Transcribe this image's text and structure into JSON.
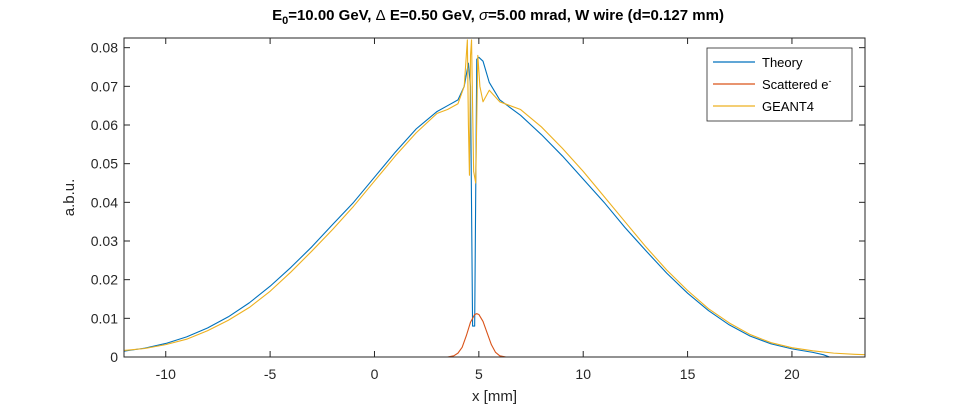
{
  "chart_data": {
    "type": "line",
    "title": {
      "p1": "E",
      "p1_sub": "0",
      "p2": "=10.00 GeV, ",
      "p3": "Δ",
      "p4": " E=0.50 GeV, ",
      "p5": "σ",
      "p6": "=5.00 mrad, W wire (d=0.127 mm)"
    },
    "xlabel": "x [mm]",
    "ylabel": "a.b.u.",
    "xlim": [
      -12,
      23.5
    ],
    "ylim": [
      0,
      0.0825
    ],
    "xticks": [
      -10,
      -5,
      0,
      5,
      10,
      15,
      20
    ],
    "yticks": [
      0,
      0.01,
      0.02,
      0.03,
      0.04,
      0.05,
      0.06,
      0.07,
      0.08
    ],
    "xtick_labels": [
      "-10",
      "-5",
      "0",
      "5",
      "10",
      "15",
      "20"
    ],
    "ytick_labels": [
      "0",
      "0.01",
      "0.02",
      "0.03",
      "0.04",
      "0.05",
      "0.06",
      "0.07",
      "0.08"
    ],
    "grid": false,
    "legend_position": "top-right",
    "series": [
      {
        "name": "Theory",
        "name_sup": "",
        "color": "#0072BD",
        "x": [
          -12,
          -11,
          -10,
          -9,
          -8,
          -7,
          -6,
          -5,
          -4,
          -3,
          -2,
          -1,
          0,
          1,
          2,
          3,
          3.5,
          4,
          4.3,
          4.5,
          4.6,
          4.7,
          4.8,
          4.9,
          5.0,
          5.2,
          5.5,
          6,
          7,
          8,
          9,
          10,
          11,
          12,
          13,
          14,
          15,
          16,
          17,
          18,
          19,
          20,
          21,
          21.5,
          21.8
        ],
        "y": [
          0.0015,
          0.0023,
          0.0035,
          0.0052,
          0.0075,
          0.0104,
          0.014,
          0.0183,
          0.0232,
          0.0285,
          0.0343,
          0.04,
          0.0465,
          0.053,
          0.059,
          0.0635,
          0.065,
          0.0665,
          0.07,
          0.076,
          0.07,
          0.008,
          0.008,
          0.077,
          0.0775,
          0.0765,
          0.071,
          0.0665,
          0.0625,
          0.0575,
          0.052,
          0.046,
          0.04,
          0.0335,
          0.0275,
          0.0217,
          0.0165,
          0.012,
          0.0083,
          0.0054,
          0.0034,
          0.0021,
          0.0012,
          0.0006,
          0.0
        ]
      },
      {
        "name": "Scattered e",
        "name_sup": "-",
        "color": "#D95319",
        "x": [
          -12,
          0,
          3.5,
          3.8,
          4.0,
          4.2,
          4.4,
          4.6,
          4.8,
          4.9,
          5.0,
          5.2,
          5.4,
          5.6,
          5.8,
          6.0,
          6.3,
          10,
          23.5
        ],
        "y": [
          0,
          0,
          0,
          0.0003,
          0.001,
          0.0025,
          0.0055,
          0.009,
          0.011,
          0.0112,
          0.011,
          0.0092,
          0.0062,
          0.0032,
          0.0012,
          0.0003,
          0,
          0,
          0
        ]
      },
      {
        "name": "GEANT4",
        "name_sup": "",
        "color": "#EDB120",
        "x": [
          -12,
          -11,
          -10,
          -9,
          -8,
          -7,
          -6,
          -5,
          -4,
          -3,
          -2,
          -1,
          0,
          1,
          2,
          3,
          3.5,
          4.0,
          4.3,
          4.45,
          4.5,
          4.55,
          4.6,
          4.65,
          4.75,
          4.85,
          4.95,
          5.05,
          5.2,
          5.5,
          6,
          7,
          8,
          9,
          10,
          11,
          12,
          13,
          14,
          15,
          16,
          17,
          18,
          19,
          20,
          21,
          22,
          23,
          23.5
        ],
        "y": [
          0.0017,
          0.0022,
          0.0032,
          0.0046,
          0.0068,
          0.0095,
          0.0128,
          0.017,
          0.022,
          0.0274,
          0.033,
          0.039,
          0.0455,
          0.052,
          0.058,
          0.063,
          0.064,
          0.0655,
          0.07,
          0.082,
          0.06,
          0.047,
          0.078,
          0.082,
          0.048,
          0.045,
          0.078,
          0.07,
          0.066,
          0.069,
          0.066,
          0.064,
          0.0595,
          0.054,
          0.048,
          0.0415,
          0.035,
          0.0285,
          0.0225,
          0.0172,
          0.0125,
          0.0088,
          0.0058,
          0.0037,
          0.0024,
          0.0016,
          0.001,
          0.0007,
          0.0006
        ]
      }
    ]
  }
}
